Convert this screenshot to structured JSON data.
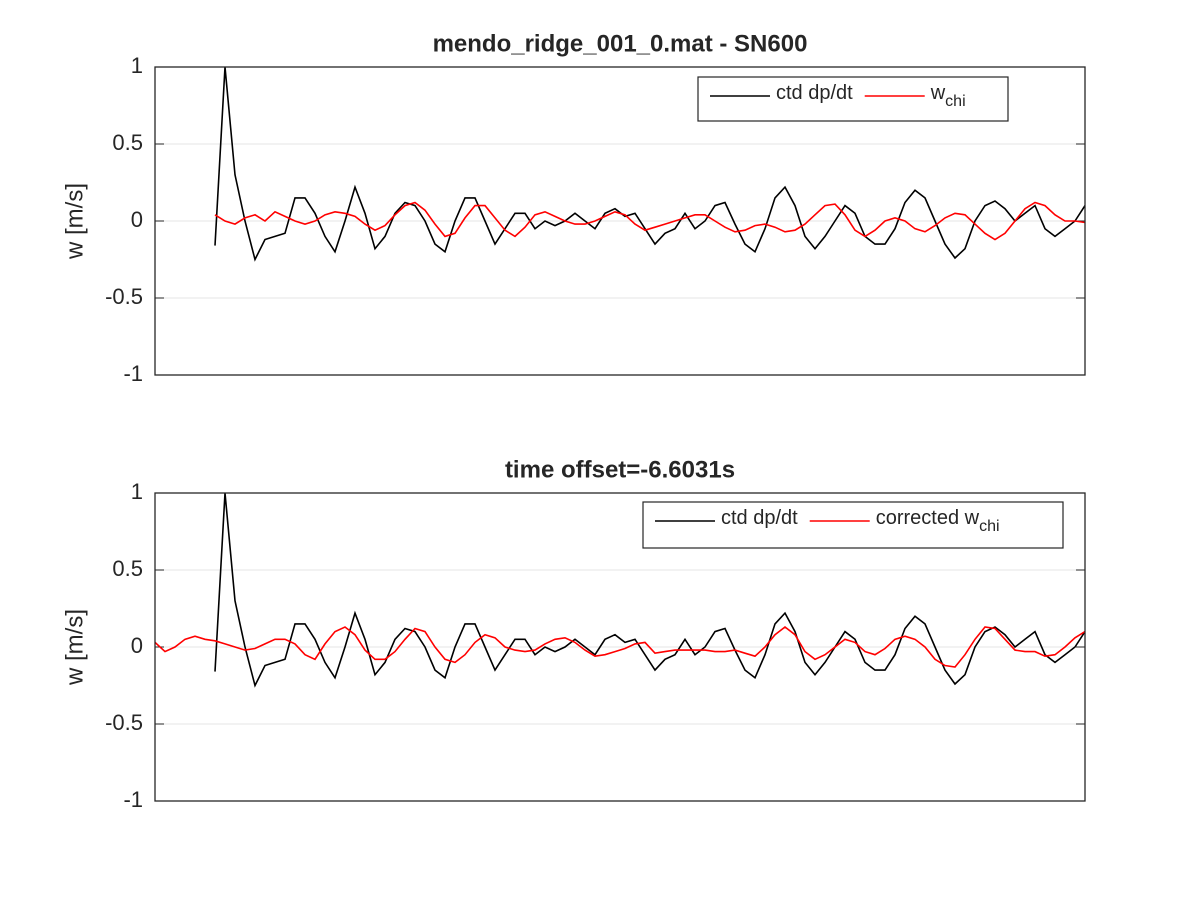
{
  "chart_data": [
    {
      "type": "line",
      "title": "mendo_ridge_001_0.mat - SN600",
      "ylabel": "w [m/s]",
      "ylim": [
        -1,
        1
      ],
      "yticks": [
        -1,
        -0.5,
        0,
        0.5,
        1
      ],
      "grid": "y",
      "legend": "northeast",
      "series": [
        {
          "name": "ctd dp/dt",
          "color": "#000000",
          "values": [
            null,
            null,
            null,
            null,
            null,
            null,
            -0.16,
            1.0,
            0.3,
            0.0,
            -0.25,
            -0.12,
            -0.1,
            -0.08,
            0.15,
            0.15,
            0.05,
            -0.1,
            -0.2,
            0.0,
            0.22,
            0.05,
            -0.18,
            -0.1,
            0.05,
            0.12,
            0.1,
            0.0,
            -0.15,
            -0.2,
            0.0,
            0.15,
            0.15,
            0.0,
            -0.15,
            -0.05,
            0.05,
            0.05,
            -0.05,
            0.0,
            -0.03,
            0.0,
            0.05,
            0.0,
            -0.05,
            0.05,
            0.08,
            0.03,
            0.05,
            -0.05,
            -0.15,
            -0.08,
            -0.05,
            0.05,
            -0.05,
            0.0,
            0.1,
            0.12,
            -0.02,
            -0.15,
            -0.2,
            -0.05,
            0.15,
            0.22,
            0.1,
            -0.1,
            -0.18,
            -0.1,
            0.0,
            0.1,
            0.05,
            -0.1,
            -0.15,
            -0.15,
            -0.05,
            0.12,
            0.2,
            0.15,
            0.0,
            -0.15,
            -0.24,
            -0.18,
            0.0,
            0.1,
            0.13,
            0.08,
            0.0,
            0.05,
            0.1,
            -0.05,
            -0.1,
            -0.05,
            0.0,
            0.1
          ]
        },
        {
          "name": "w_{chi}",
          "color": "#ff0000",
          "values": [
            null,
            null,
            null,
            null,
            null,
            null,
            0.04,
            0.0,
            -0.02,
            0.02,
            0.04,
            0.0,
            0.06,
            0.03,
            0.0,
            -0.02,
            0.0,
            0.04,
            0.06,
            0.05,
            0.03,
            -0.02,
            -0.06,
            -0.03,
            0.04,
            0.1,
            0.12,
            0.07,
            -0.02,
            -0.1,
            -0.08,
            0.02,
            0.1,
            0.1,
            0.02,
            -0.06,
            -0.1,
            -0.04,
            0.04,
            0.06,
            0.03,
            0.0,
            -0.02,
            -0.02,
            0.0,
            0.03,
            0.06,
            0.04,
            -0.02,
            -0.06,
            -0.04,
            -0.02,
            0.0,
            0.02,
            0.04,
            0.04,
            0.0,
            -0.04,
            -0.07,
            -0.06,
            -0.03,
            -0.02,
            -0.04,
            -0.07,
            -0.06,
            -0.02,
            0.04,
            0.1,
            0.11,
            0.04,
            -0.06,
            -0.1,
            -0.06,
            0.0,
            0.02,
            0.0,
            -0.05,
            -0.07,
            -0.03,
            0.02,
            0.05,
            0.04,
            -0.02,
            -0.08,
            -0.12,
            -0.08,
            0.0,
            0.08,
            0.12,
            0.1,
            0.04,
            0.0,
            0.0,
            -0.01
          ]
        }
      ]
    },
    {
      "type": "line",
      "title": "time offset=-6.6031s",
      "ylabel": "w [m/s]",
      "ylim": [
        -1,
        1
      ],
      "yticks": [
        -1,
        -0.5,
        0,
        0.5,
        1
      ],
      "grid": "y",
      "legend": "northeast",
      "series": [
        {
          "name": "ctd dp/dt",
          "color": "#000000",
          "values": [
            null,
            null,
            null,
            null,
            null,
            null,
            -0.16,
            1.0,
            0.3,
            0.0,
            -0.25,
            -0.12,
            -0.1,
            -0.08,
            0.15,
            0.15,
            0.05,
            -0.1,
            -0.2,
            0.0,
            0.22,
            0.05,
            -0.18,
            -0.1,
            0.05,
            0.12,
            0.1,
            0.0,
            -0.15,
            -0.2,
            0.0,
            0.15,
            0.15,
            0.0,
            -0.15,
            -0.05,
            0.05,
            0.05,
            -0.05,
            0.0,
            -0.03,
            0.0,
            0.05,
            0.0,
            -0.05,
            0.05,
            0.08,
            0.03,
            0.05,
            -0.05,
            -0.15,
            -0.08,
            -0.05,
            0.05,
            -0.05,
            0.0,
            0.1,
            0.12,
            -0.02,
            -0.15,
            -0.2,
            -0.05,
            0.15,
            0.22,
            0.1,
            -0.1,
            -0.18,
            -0.1,
            0.0,
            0.1,
            0.05,
            -0.1,
            -0.15,
            -0.15,
            -0.05,
            0.12,
            0.2,
            0.15,
            0.0,
            -0.15,
            -0.24,
            -0.18,
            0.0,
            0.1,
            0.13,
            0.08,
            0.0,
            0.05,
            0.1,
            -0.05,
            -0.1,
            -0.05,
            0.0,
            0.1
          ]
        },
        {
          "name": "corrected w_{chi}",
          "color": "#ff0000",
          "values": [
            0.03,
            -0.03,
            0.0,
            0.05,
            0.07,
            0.05,
            0.04,
            0.02,
            0.0,
            -0.02,
            -0.01,
            0.02,
            0.05,
            0.05,
            0.02,
            -0.05,
            -0.08,
            0.02,
            0.1,
            0.13,
            0.08,
            -0.02,
            -0.08,
            -0.08,
            -0.03,
            0.05,
            0.12,
            0.1,
            0.0,
            -0.08,
            -0.1,
            -0.05,
            0.03,
            0.08,
            0.06,
            0.0,
            -0.02,
            -0.03,
            -0.02,
            0.02,
            0.05,
            0.06,
            0.03,
            -0.02,
            -0.06,
            -0.05,
            -0.03,
            -0.01,
            0.02,
            0.03,
            -0.04,
            -0.03,
            -0.02,
            -0.02,
            -0.02,
            -0.02,
            -0.03,
            -0.03,
            -0.02,
            -0.04,
            -0.06,
            0.0,
            0.08,
            0.13,
            0.08,
            -0.03,
            -0.08,
            -0.05,
            0.0,
            0.05,
            0.03,
            -0.03,
            -0.05,
            -0.01,
            0.05,
            0.07,
            0.05,
            0.0,
            -0.08,
            -0.12,
            -0.13,
            -0.05,
            0.05,
            0.13,
            0.12,
            0.05,
            -0.02,
            -0.03,
            -0.03,
            -0.06,
            -0.05,
            0.0,
            0.06,
            0.1
          ]
        }
      ]
    }
  ]
}
